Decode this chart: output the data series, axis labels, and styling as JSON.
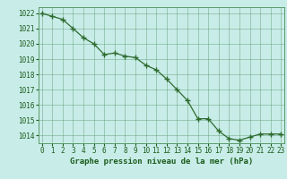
{
  "x": [
    0,
    1,
    2,
    3,
    4,
    5,
    6,
    7,
    8,
    9,
    10,
    11,
    12,
    13,
    14,
    15,
    16,
    17,
    18,
    19,
    20,
    21,
    22,
    23
  ],
  "y": [
    1022.0,
    1021.8,
    1021.6,
    1021.0,
    1020.4,
    1020.0,
    1019.3,
    1019.4,
    1019.2,
    1019.1,
    1018.6,
    1018.3,
    1017.7,
    1017.0,
    1016.3,
    1015.1,
    1015.1,
    1014.3,
    1013.8,
    1013.7,
    1013.9,
    1014.1,
    1014.1,
    1014.1
  ],
  "line_color": "#2d6a2d",
  "marker_color": "#2d6a2d",
  "bg_color": "#c8ece8",
  "grid_color": "#5a9a6a",
  "xlabel": "Graphe pression niveau de la mer (hPa)",
  "xlabel_color": "#1a5c1a",
  "tick_color": "#1a5c1a",
  "ylim": [
    1013.5,
    1022.4
  ],
  "xlim": [
    -0.3,
    23.3
  ],
  "yticks": [
    1014,
    1015,
    1016,
    1017,
    1018,
    1019,
    1020,
    1021,
    1022
  ],
  "xticks": [
    0,
    1,
    2,
    3,
    4,
    5,
    6,
    7,
    8,
    9,
    10,
    11,
    12,
    13,
    14,
    15,
    16,
    17,
    18,
    19,
    20,
    21,
    22,
    23
  ]
}
